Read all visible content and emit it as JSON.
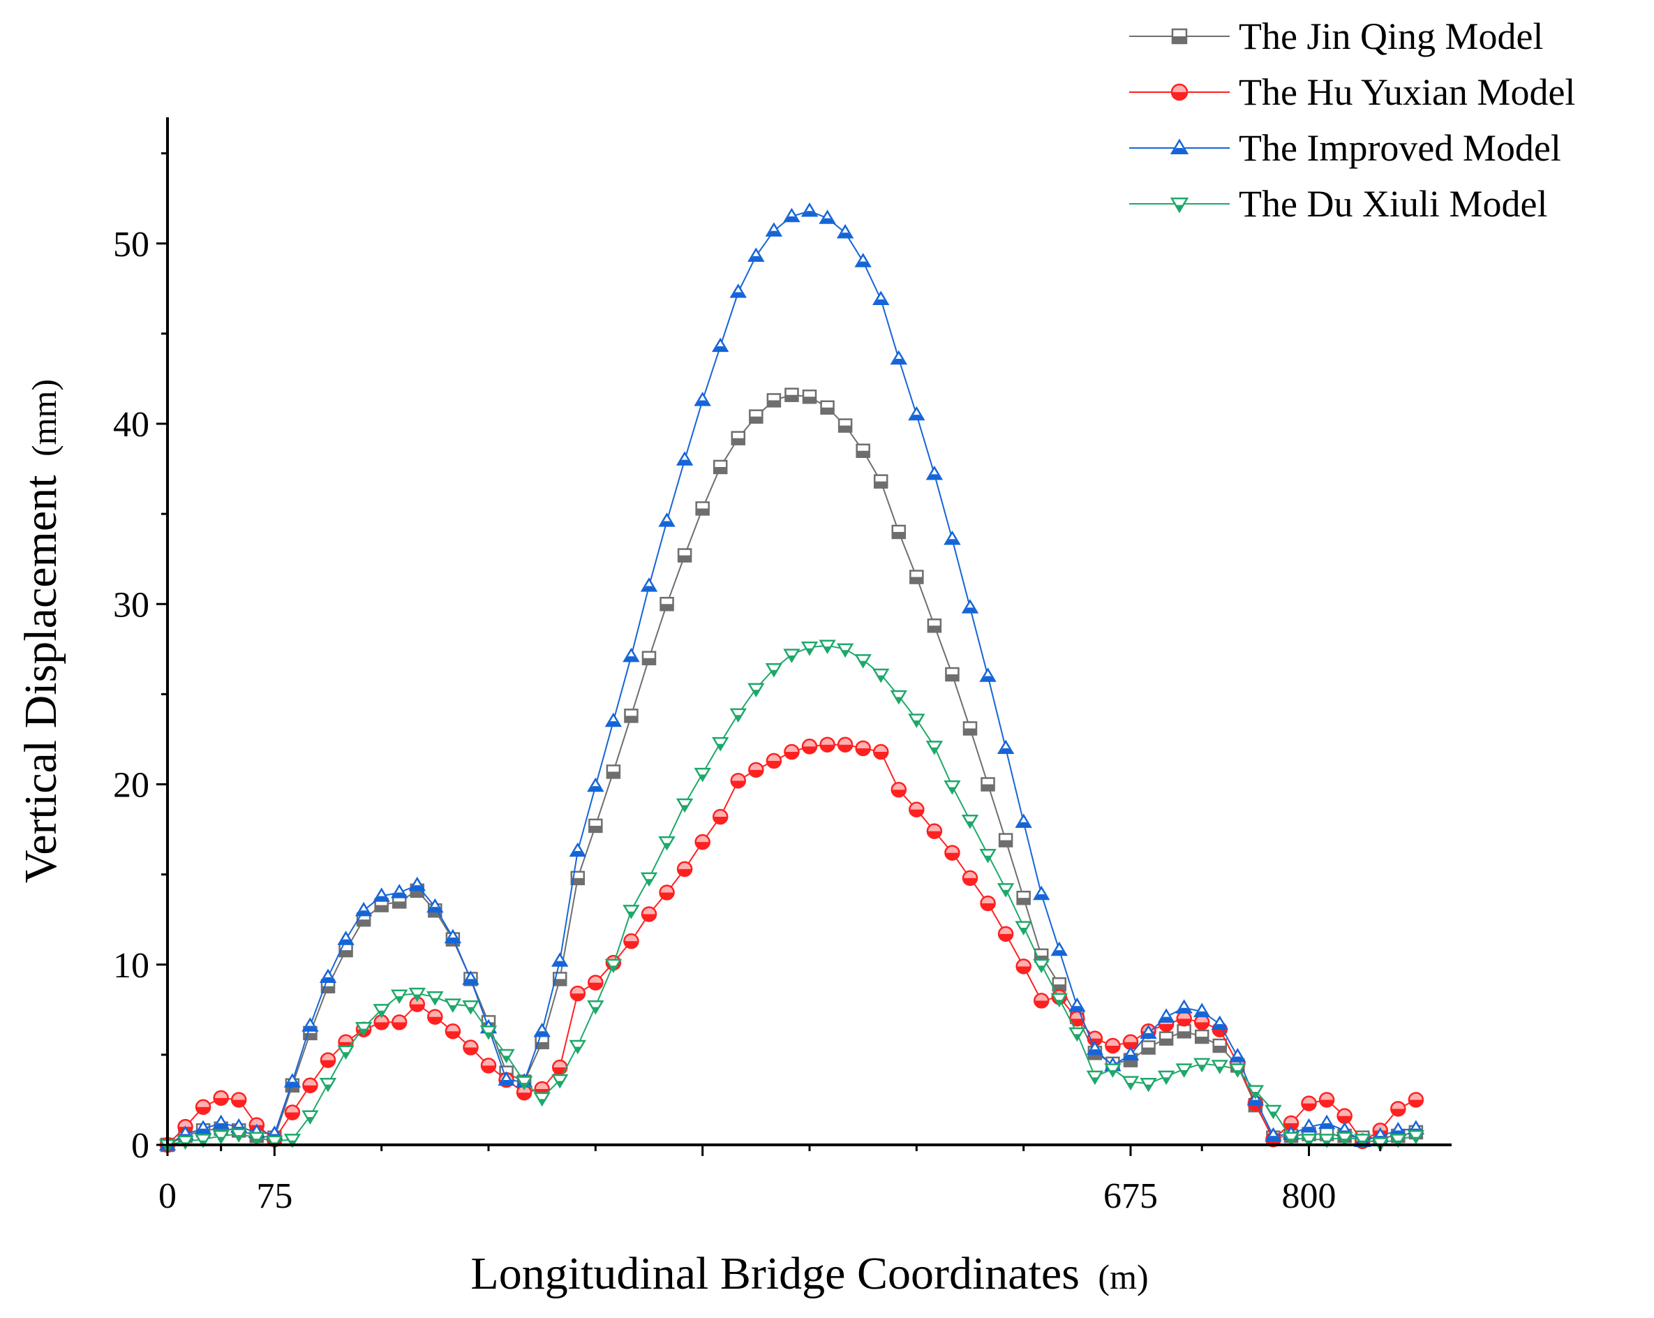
{
  "chart_data": {
    "type": "line",
    "title": "",
    "xlabel": "Longitudinal Bridge Coordinates",
    "xlabel_unit": "(m)",
    "ylabel": "Vertical Displacement",
    "ylabel_unit": "(mm)",
    "xlim": [
      0,
      900
    ],
    "ylim": [
      0,
      57
    ],
    "x_ticks": [
      0,
      75,
      675,
      800
    ],
    "y_ticks": [
      0,
      10,
      20,
      30,
      40,
      50
    ],
    "legend_position": "top-right",
    "series": [
      {
        "name": "The Jin Qing Model",
        "color": "#6e6e6e",
        "marker": "square",
        "x": [
          0,
          12.5,
          25,
          37.5,
          50,
          62.5,
          75,
          87.5,
          100,
          112.5,
          125,
          137.5,
          150,
          162.5,
          175,
          187.5,
          200,
          212.5,
          225,
          237.5,
          250,
          262.5,
          275,
          287.5,
          300,
          312.5,
          325,
          337.5,
          350,
          362.5,
          375,
          387.5,
          400,
          412.5,
          425,
          437.5,
          450,
          462.5,
          475,
          487.5,
          500,
          512.5,
          525,
          537.5,
          550,
          562.5,
          575,
          587.5,
          600,
          612.5,
          625,
          637.5,
          650,
          662.5,
          675,
          687.5,
          700,
          712.5,
          725,
          737.5,
          750,
          762.5,
          775,
          787.5,
          800,
          812.5,
          825,
          837.5,
          850,
          862.5,
          875
        ],
        "values": [
          0,
          0.5,
          0.8,
          0.9,
          0.8,
          0.5,
          0.4,
          3.3,
          6.2,
          8.8,
          10.8,
          12.5,
          13.3,
          13.5,
          14.1,
          13.0,
          11.4,
          9.2,
          6.8,
          4.0,
          3.5,
          5.7,
          9.2,
          14.8,
          17.7,
          20.7,
          23.8,
          27.0,
          30.0,
          32.7,
          35.3,
          37.6,
          39.2,
          40.4,
          41.3,
          41.6,
          41.5,
          40.9,
          39.9,
          38.5,
          36.8,
          34.0,
          31.5,
          28.8,
          26.1,
          23.1,
          20.0,
          16.9,
          13.7,
          10.5,
          8.9,
          7.1,
          5.1,
          4.5,
          4.7,
          5.4,
          5.9,
          6.3,
          6.0,
          5.5,
          4.4,
          2.2,
          0.4,
          0.5,
          0.6,
          0.6,
          0.5,
          0.4,
          0.4,
          0.5,
          0.7
        ]
      },
      {
        "name": "The Hu Yuxian Model",
        "color": "#ff2020",
        "marker": "circle",
        "x": [
          0,
          12.5,
          25,
          37.5,
          50,
          62.5,
          75,
          87.5,
          100,
          112.5,
          125,
          137.5,
          150,
          162.5,
          175,
          187.5,
          200,
          212.5,
          225,
          237.5,
          250,
          262.5,
          275,
          287.5,
          300,
          312.5,
          325,
          337.5,
          350,
          362.5,
          375,
          387.5,
          400,
          412.5,
          425,
          437.5,
          450,
          462.5,
          475,
          487.5,
          500,
          512.5,
          525,
          537.5,
          550,
          562.5,
          575,
          587.5,
          600,
          612.5,
          625,
          637.5,
          650,
          662.5,
          675,
          687.5,
          700,
          712.5,
          725,
          737.5,
          750,
          762.5,
          775,
          787.5,
          800,
          812.5,
          825,
          837.5,
          850,
          862.5,
          875
        ],
        "values": [
          0,
          1.0,
          2.1,
          2.6,
          2.5,
          1.1,
          0.3,
          1.8,
          3.3,
          4.7,
          5.7,
          6.4,
          6.8,
          6.8,
          7.8,
          7.1,
          6.3,
          5.4,
          4.4,
          3.6,
          2.9,
          3.1,
          4.3,
          8.4,
          9.0,
          10.1,
          11.3,
          12.8,
          14.0,
          15.3,
          16.8,
          18.2,
          20.2,
          20.8,
          21.3,
          21.8,
          22.1,
          22.2,
          22.2,
          22.0,
          21.8,
          19.7,
          18.6,
          17.4,
          16.2,
          14.8,
          13.4,
          11.7,
          9.9,
          8.0,
          8.2,
          7.0,
          5.9,
          5.5,
          5.7,
          6.3,
          6.7,
          7.0,
          6.8,
          6.4,
          4.5,
          2.3,
          0.3,
          1.2,
          2.3,
          2.5,
          1.6,
          0.2,
          0.8,
          2.0,
          2.5
        ]
      },
      {
        "name": "The Improved Model",
        "color": "#1565d8",
        "marker": "triangle-up",
        "x": [
          0,
          12.5,
          25,
          37.5,
          50,
          62.5,
          75,
          87.5,
          100,
          112.5,
          125,
          137.5,
          150,
          162.5,
          175,
          187.5,
          200,
          212.5,
          225,
          237.5,
          250,
          262.5,
          275,
          287.5,
          300,
          312.5,
          325,
          337.5,
          350,
          362.5,
          375,
          387.5,
          400,
          412.5,
          425,
          437.5,
          450,
          462.5,
          475,
          487.5,
          500,
          512.5,
          525,
          537.5,
          550,
          562.5,
          575,
          587.5,
          600,
          612.5,
          625,
          637.5,
          650,
          662.5,
          675,
          687.5,
          700,
          712.5,
          725,
          737.5,
          750,
          762.5,
          775,
          787.5,
          800,
          812.5,
          825,
          837.5,
          850,
          862.5,
          875
        ],
        "values": [
          0,
          0.6,
          0.9,
          1.2,
          1.0,
          0.7,
          0.6,
          3.5,
          6.6,
          9.3,
          11.4,
          13.0,
          13.8,
          14.0,
          14.4,
          13.2,
          11.5,
          9.2,
          6.5,
          3.6,
          3.5,
          6.3,
          10.2,
          16.3,
          19.9,
          23.5,
          27.1,
          31.0,
          34.6,
          38.0,
          41.3,
          44.3,
          47.3,
          49.3,
          50.7,
          51.5,
          51.8,
          51.4,
          50.6,
          49.0,
          46.9,
          43.6,
          40.5,
          37.2,
          33.6,
          29.8,
          26.0,
          22.0,
          17.9,
          13.9,
          10.8,
          7.7,
          5.3,
          4.4,
          5.0,
          6.2,
          7.1,
          7.6,
          7.4,
          6.7,
          4.9,
          2.5,
          0.5,
          0.6,
          1.0,
          1.2,
          0.8,
          0.2,
          0.5,
          0.8,
          0.9
        ]
      },
      {
        "name": "The Du Xiuli Model",
        "color": "#1ea86a",
        "marker": "triangle-down",
        "x": [
          0,
          12.5,
          25,
          37.5,
          50,
          62.5,
          75,
          87.5,
          100,
          112.5,
          125,
          137.5,
          150,
          162.5,
          175,
          187.5,
          200,
          212.5,
          225,
          237.5,
          250,
          262.5,
          275,
          287.5,
          300,
          312.5,
          325,
          337.5,
          350,
          362.5,
          375,
          387.5,
          400,
          412.5,
          425,
          437.5,
          450,
          462.5,
          475,
          487.5,
          500,
          512.5,
          525,
          537.5,
          550,
          562.5,
          575,
          587.5,
          600,
          612.5,
          625,
          637.5,
          650,
          662.5,
          675,
          687.5,
          700,
          712.5,
          725,
          737.5,
          750,
          762.5,
          775,
          787.5,
          800,
          812.5,
          825,
          837.5,
          850,
          862.5,
          875
        ],
        "values": [
          0,
          0.2,
          0.3,
          0.5,
          0.6,
          0.4,
          0.2,
          0.3,
          1.6,
          3.4,
          5.2,
          6.5,
          7.5,
          8.3,
          8.4,
          8.2,
          7.8,
          7.7,
          6.3,
          5.0,
          3.5,
          2.6,
          3.6,
          5.5,
          7.7,
          10.0,
          13.0,
          14.8,
          16.8,
          18.9,
          20.6,
          22.3,
          23.9,
          25.3,
          26.4,
          27.2,
          27.6,
          27.7,
          27.5,
          26.9,
          26.1,
          24.9,
          23.6,
          22.1,
          19.9,
          18.0,
          16.1,
          14.2,
          12.1,
          10.0,
          8.1,
          6.2,
          3.8,
          4.2,
          3.5,
          3.4,
          3.8,
          4.2,
          4.5,
          4.4,
          4.2,
          3.0,
          1.9,
          0.4,
          0.3,
          0.3,
          0.4,
          0.3,
          0.1,
          0.3,
          0.5
        ]
      }
    ]
  }
}
